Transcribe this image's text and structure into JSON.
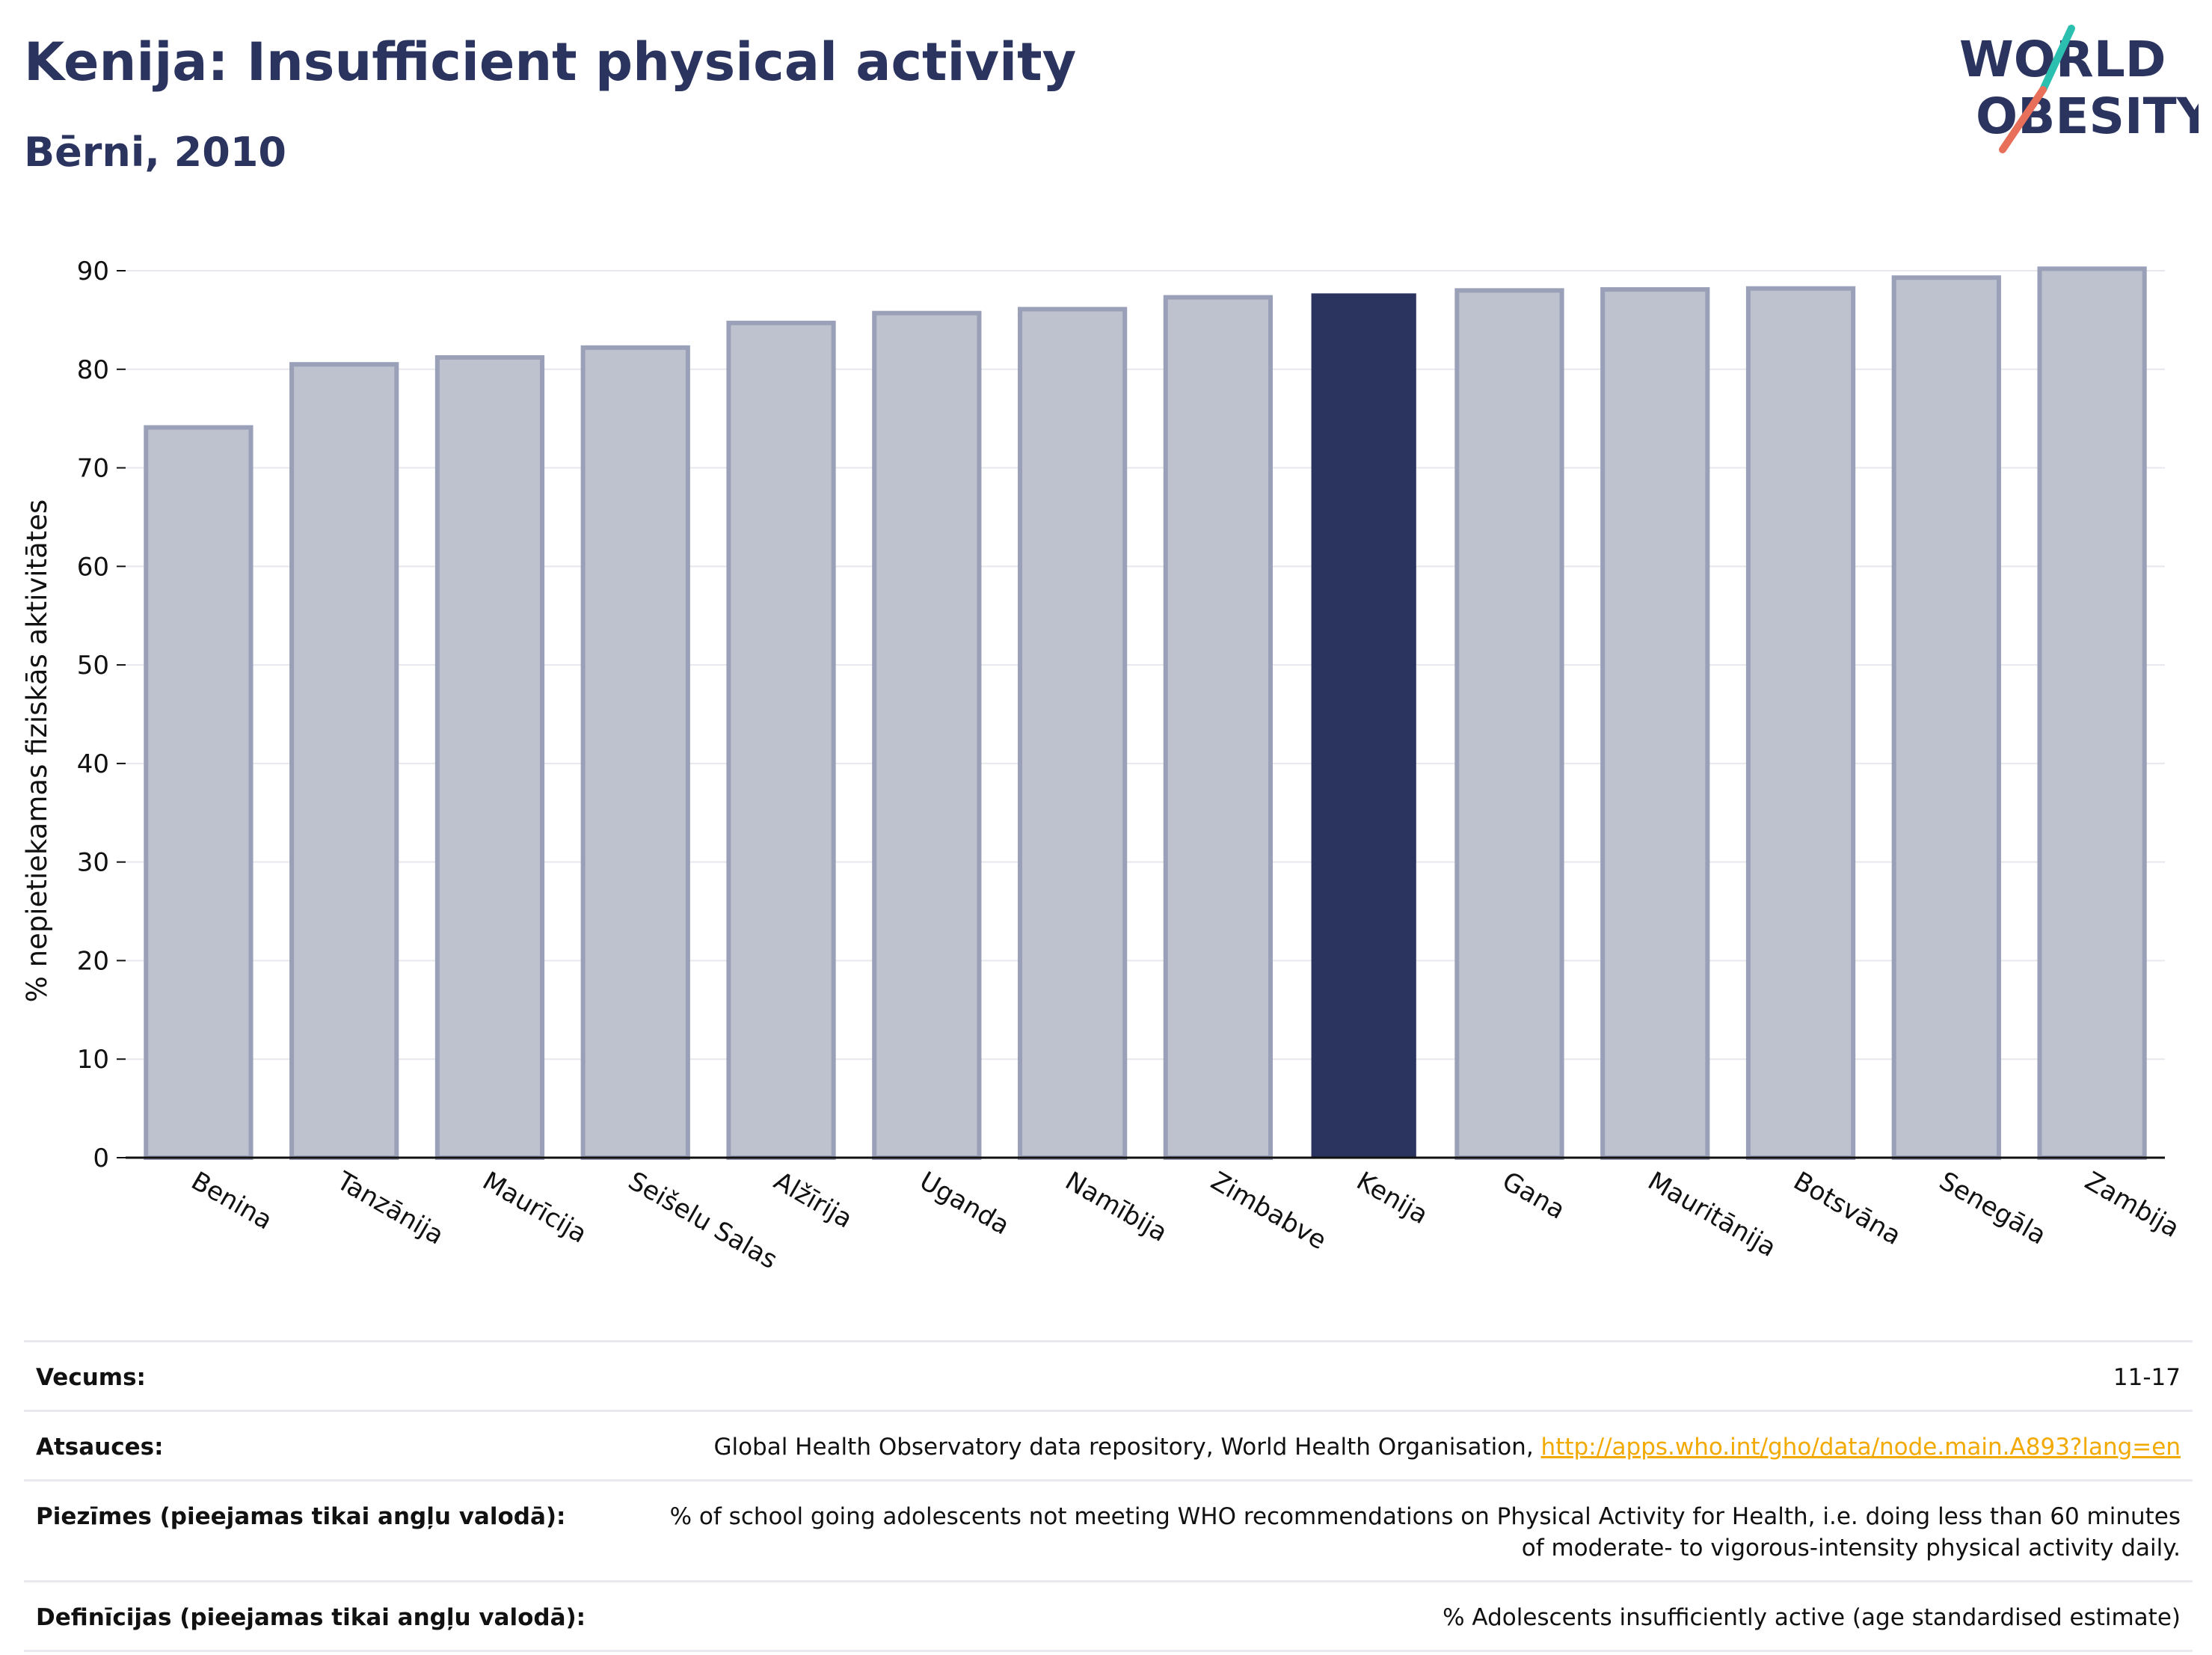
{
  "header": {
    "title": "Kenija: Insufficient physical activity",
    "subtitle": "Bērni, 2010"
  },
  "logo": {
    "line1": "WORLD",
    "line2": "OBESITY",
    "slash_colors": [
      "#2bbfb0",
      "#e8705a"
    ]
  },
  "colors": {
    "highlight_bar": "#2b345f",
    "other_bar_fill": "#bec1ce",
    "other_bar_stroke": "#9aa0b8",
    "title": "#2b345f",
    "link": "#f2a900"
  },
  "chart_data": {
    "type": "bar",
    "title": "Kenija: Insufficient physical activity",
    "subtitle": "Bērni, 2010",
    "ylabel": "% nepietiekamas fiziskās aktivitātes",
    "xlabel": "",
    "ylim": [
      0,
      90
    ],
    "yticks": [
      0,
      10,
      20,
      30,
      40,
      50,
      60,
      70,
      80,
      90
    ],
    "grid": true,
    "highlight": "Kenija",
    "categories": [
      "Benina",
      "Tanzānija",
      "Maurīcija",
      "Seišelu Salas",
      "Alžīrija",
      "Uganda",
      "Namībija",
      "Zimbabve",
      "Kenija",
      "Gana",
      "Mauritānija",
      "Botsvāna",
      "Senegāla",
      "Zambija"
    ],
    "values": [
      74.1,
      80.5,
      81.2,
      82.2,
      84.7,
      85.7,
      86.1,
      87.3,
      87.7,
      88.0,
      88.1,
      88.2,
      89.3,
      90.2
    ]
  },
  "meta": {
    "rows": [
      {
        "label": "Vecums:",
        "value": "11-17"
      },
      {
        "label": "Atsauces:",
        "value": "Global Health Observatory data repository, World Health Organisation, ",
        "link": "http://apps.who.int/gho/data/node.main.A893?lang=en"
      },
      {
        "label": "Piezīmes (pieejamas tikai angļu valodā):",
        "value": "% of school going adolescents not meeting WHO recommendations on Physical Activity for Health, i.e. doing less than 60 minutes of moderate- to vigorous-intensity physical activity daily."
      },
      {
        "label": "Definīcijas (pieejamas tikai angļu valodā):",
        "value": "% Adolescents insufficiently active (age standardised estimate)"
      }
    ]
  }
}
